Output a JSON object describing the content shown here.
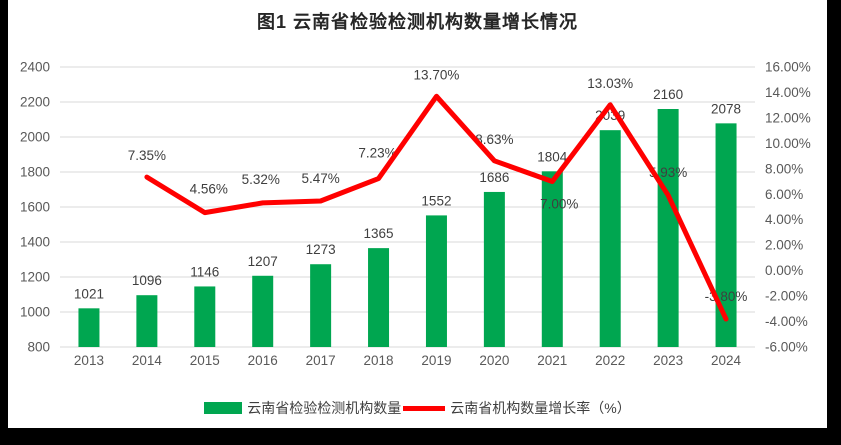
{
  "title": "图1 云南省检验检测机构数量增长情况",
  "chart_data": {
    "type": "combo_bar_line",
    "title": "图1 云南省检验检测机构数量增长情况",
    "categories": [
      "2013",
      "2014",
      "2015",
      "2016",
      "2017",
      "2018",
      "2019",
      "2020",
      "2021",
      "2022",
      "2023",
      "2024"
    ],
    "series": [
      {
        "name": "云南省检验检测机构数量",
        "type": "bar",
        "axis": "left",
        "color": "#00A650",
        "values": [
          1021,
          1096,
          1146,
          1207,
          1273,
          1365,
          1552,
          1686,
          1804,
          2039,
          2160,
          2078
        ],
        "labels": [
          "1021",
          "1096",
          "1146",
          "1207",
          "1273",
          "1365",
          "1552",
          "1686",
          "1804",
          "2039",
          "2160",
          "2078"
        ]
      },
      {
        "name": "云南省机构数量增长率（%）",
        "type": "line",
        "axis": "right",
        "color": "#FF0000",
        "values": [
          null,
          7.35,
          4.56,
          5.32,
          5.47,
          7.23,
          13.7,
          8.63,
          7.0,
          13.03,
          5.93,
          -3.8
        ],
        "labels": [
          null,
          "7.35%",
          "4.56%",
          "5.32%",
          "5.47%",
          "7.23%",
          "13.70%",
          "8.63%",
          "7.00%",
          "13.03%",
          "5.93%",
          "-3.80%"
        ]
      }
    ],
    "left_axis": {
      "min": 800,
      "max": 2400,
      "step": 200,
      "ticks": [
        "2400",
        "2200",
        "2000",
        "1800",
        "1600",
        "1400",
        "1200",
        "1000",
        "800"
      ]
    },
    "right_axis": {
      "min": -6,
      "max": 16,
      "step": 2,
      "ticks": [
        "16.00%",
        "14.00%",
        "12.00%",
        "10.00%",
        "8.00%",
        "6.00%",
        "4.00%",
        "2.00%",
        "0.00%",
        "-2.00%",
        "-4.00%",
        "-6.00%"
      ]
    },
    "gridlines": true,
    "gridline_color": "#D9D9D9",
    "tick_color": "#595959",
    "data_label_color": "#3F3F3F",
    "legend_position": "bottom",
    "line_label_offsets": {
      "dx": [
        0,
        4,
        -2,
        0,
        -1,
        0,
        0,
        7,
        0,
        0,
        0
      ],
      "dy": [
        -17,
        -19,
        -19,
        -18,
        -21,
        -17,
        -17,
        27,
        -17,
        -18,
        -18
      ]
    }
  },
  "legend": {
    "items": [
      {
        "label": "云南省检验检测机构数量",
        "swatch": "bar",
        "color": "#00A650"
      },
      {
        "label": "云南省机构数量增长率（%）",
        "swatch": "line",
        "color": "#FF0000"
      }
    ]
  }
}
